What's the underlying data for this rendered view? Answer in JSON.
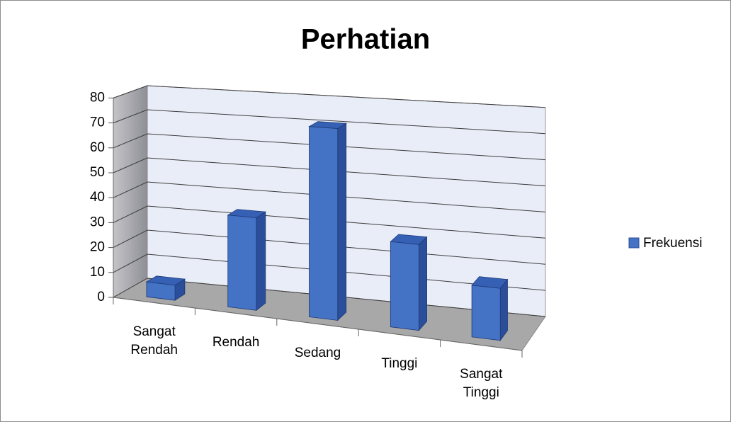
{
  "chart_data": {
    "type": "bar3d",
    "title": "Perhatian",
    "categories": [
      "Sangat Rendah",
      "Rendah",
      "Sedang",
      "Tinggi",
      "Sangat Tinggi"
    ],
    "series": [
      {
        "name": "Frekuensi",
        "color": "#4472c4",
        "values": [
          6,
          36,
          73,
          32,
          19
        ]
      }
    ],
    "ylim": [
      0,
      80
    ],
    "yticks": [
      0,
      10,
      20,
      30,
      40,
      50,
      60,
      70,
      80
    ],
    "grid": true,
    "legend": "right"
  }
}
